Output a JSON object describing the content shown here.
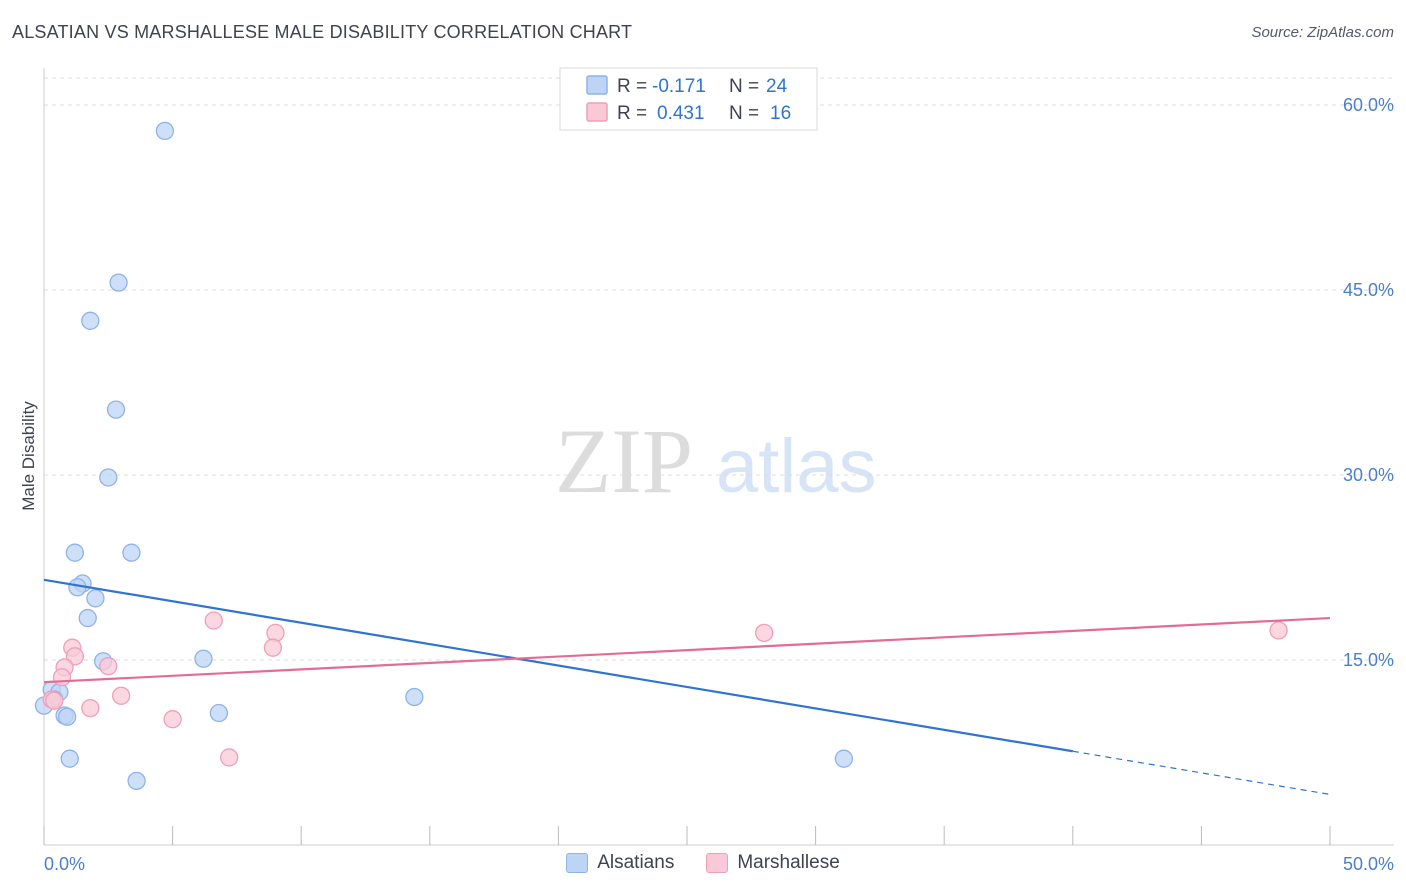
{
  "title": "ALSATIAN VS MARSHALLESE MALE DISABILITY CORRELATION CHART",
  "source": "Source: ZipAtlas.com",
  "watermark": {
    "zip": "ZIP",
    "atlas": "atlas"
  },
  "stats_legend": [
    {
      "r_label": "R =",
      "r_value": "-0.171",
      "n_label": "N =",
      "n_value": "24"
    },
    {
      "r_label": "R =",
      "r_value": "0.431",
      "n_label": "N =",
      "n_value": "16"
    }
  ],
  "colors": {
    "alsatians_fill": "#bdd4f5",
    "alsatians_stroke": "#8fb3e8",
    "alsatians_line": "#2f74d0",
    "marshallese_fill": "#f9c9d7",
    "marshallese_stroke": "#ef9fb8",
    "marshallese_line": "#e56b94",
    "axis_text": "#4a7fc9",
    "grid": "#dddddd"
  },
  "chart_data": {
    "type": "scatter",
    "title": "ALSATIAN VS MARSHALLESE MALE DISABILITY CORRELATION CHART",
    "xlabel": "",
    "ylabel": "Male Disability",
    "xlim": [
      0,
      50
    ],
    "ylim": [
      0,
      63
    ],
    "x_tick_labels": [
      "0.0%",
      "50.0%"
    ],
    "y_ticks": [
      15,
      30,
      45,
      60
    ],
    "y_tick_labels": [
      "15.0%",
      "30.0%",
      "45.0%",
      "60.0%"
    ],
    "series": [
      {
        "name": "Alsatians",
        "r": -0.171,
        "n": 24,
        "points": [
          [
            4.7,
            57.9
          ],
          [
            2.9,
            45.6
          ],
          [
            1.8,
            42.5
          ],
          [
            2.8,
            35.3
          ],
          [
            2.5,
            29.8
          ],
          [
            1.2,
            23.7
          ],
          [
            3.4,
            23.7
          ],
          [
            1.5,
            21.2
          ],
          [
            1.3,
            20.9
          ],
          [
            2.0,
            20.0
          ],
          [
            1.7,
            18.4
          ],
          [
            2.3,
            14.9
          ],
          [
            6.2,
            15.1
          ],
          [
            0.3,
            12.6
          ],
          [
            0.6,
            12.4
          ],
          [
            0.4,
            11.8
          ],
          [
            0.0,
            11.3
          ],
          [
            0.8,
            10.5
          ],
          [
            0.9,
            10.4
          ],
          [
            6.8,
            10.7
          ],
          [
            14.4,
            12.0
          ],
          [
            1.0,
            7.0
          ],
          [
            3.6,
            5.2
          ],
          [
            31.1,
            7.0
          ]
        ],
        "trend": {
          "x0": 0,
          "y0": 21.5,
          "x1": 40,
          "y1": 7.6,
          "dash_x1": 50,
          "dash_y1": 4.1
        }
      },
      {
        "name": "Marshallese",
        "r": 0.431,
        "n": 16,
        "points": [
          [
            6.6,
            18.2
          ],
          [
            9.0,
            17.2
          ],
          [
            28.0,
            17.2
          ],
          [
            8.9,
            16.0
          ],
          [
            1.1,
            16.0
          ],
          [
            1.2,
            15.3
          ],
          [
            2.5,
            14.5
          ],
          [
            0.8,
            14.4
          ],
          [
            0.7,
            13.6
          ],
          [
            3.0,
            12.1
          ],
          [
            0.3,
            11.8
          ],
          [
            0.4,
            11.7
          ],
          [
            1.8,
            11.1
          ],
          [
            5.0,
            10.2
          ],
          [
            7.2,
            7.1
          ],
          [
            48.0,
            17.4
          ]
        ],
        "trend": {
          "x0": 0,
          "y0": 13.2,
          "x1": 50,
          "y1": 18.4
        }
      }
    ],
    "legend": [
      "Alsatians",
      "Marshallese"
    ]
  }
}
